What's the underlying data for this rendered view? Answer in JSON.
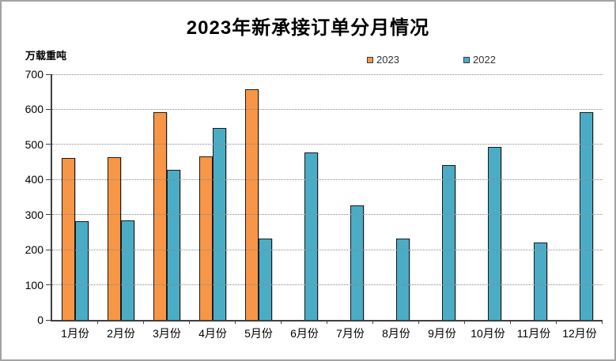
{
  "window": {
    "background_color": "#ffffff",
    "border_color": "#a3a3a3"
  },
  "chart_data": {
    "type": "bar",
    "title": "2023年新承接订单分月情况",
    "ylabel": "万载重吨",
    "xlabel": "",
    "categories": [
      "1月份",
      "2月份",
      "3月份",
      "4月份",
      "5月份",
      "6月份",
      "7月份",
      "8月份",
      "9月份",
      "10月份",
      "11月份",
      "12月份"
    ],
    "series": [
      {
        "name": "2023",
        "color": "#F79646",
        "values": [
          461,
          463,
          592,
          466,
          658,
          null,
          null,
          null,
          null,
          null,
          null,
          null
        ]
      },
      {
        "name": "2022",
        "color": "#4BACC6",
        "values": [
          282,
          283,
          428,
          546,
          231,
          477,
          326,
          232,
          441,
          494,
          220,
          591
        ]
      }
    ],
    "ylim": [
      0,
      700
    ],
    "y_ticks": [
      0,
      100,
      200,
      300,
      400,
      500,
      600,
      700
    ],
    "grid": "horizontal-dotted",
    "legend_position": "top-center",
    "axis_color": "#404040",
    "gridline_color": "#8a8a8a"
  }
}
